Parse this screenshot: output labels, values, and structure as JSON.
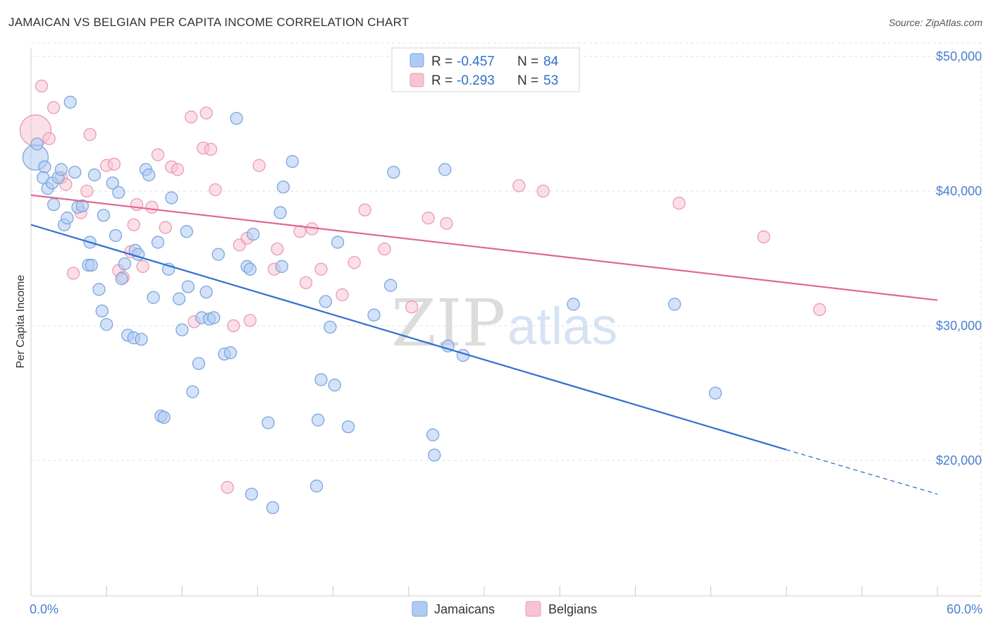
{
  "title": "JAMAICAN VS BELGIAN PER CAPITA INCOME CORRELATION CHART",
  "source": "Source: ZipAtlas.com",
  "watermark": {
    "zip": "ZIP",
    "atlas": "atlas"
  },
  "colors": {
    "blue_fill": "#aecbf2",
    "blue_stroke": "#7aa6e0",
    "blue_line": "#2f6fd0",
    "pink_fill": "#f8c4d4",
    "pink_stroke": "#ec9ab5",
    "pink_line": "#e06890",
    "axis_text": "#4a7fcf",
    "grid": "#e1e1e1"
  },
  "legend": {
    "entries": [
      {
        "r_label": "R = ",
        "r_value": "-0.457",
        "n_label": "N = ",
        "n_value": "84",
        "series": "Jamaicans"
      },
      {
        "r_label": "R = ",
        "r_value": "-0.293",
        "n_label": "N = ",
        "n_value": "53",
        "series": "Belgians"
      }
    ]
  },
  "chart_data": {
    "type": "scatter",
    "title": "JAMAICAN VS BELGIAN PER CAPITA INCOME CORRELATION CHART",
    "xlabel": "",
    "ylabel": "Per Capita Income",
    "xlim": [
      0,
      60
    ],
    "ylim": [
      10000,
      51000
    ],
    "x_tick_labels": [
      {
        "value": 0,
        "label": "0.0%"
      },
      {
        "value": 60,
        "label": "60.0%"
      }
    ],
    "y_tick_labels": [
      {
        "value": 20000,
        "label": "$20,000"
      },
      {
        "value": 30000,
        "label": "$30,000"
      },
      {
        "value": 40000,
        "label": "$40,000"
      },
      {
        "value": 50000,
        "label": "$50,000"
      }
    ],
    "grid": true,
    "legend_position": "top-center",
    "series": [
      {
        "name": "Jamaicans",
        "color": "#aecbf2",
        "points": [
          [
            0.3,
            42500
          ],
          [
            0.4,
            43500
          ],
          [
            0.9,
            41800
          ],
          [
            0.8,
            41000
          ],
          [
            1.1,
            40200
          ],
          [
            1.4,
            40600
          ],
          [
            1.5,
            39000
          ],
          [
            1.8,
            41000
          ],
          [
            2.0,
            41600
          ],
          [
            2.2,
            37500
          ],
          [
            2.4,
            38000
          ],
          [
            2.6,
            46600
          ],
          [
            2.9,
            41400
          ],
          [
            3.1,
            38800
          ],
          [
            3.4,
            38900
          ],
          [
            3.8,
            34500
          ],
          [
            3.9,
            36200
          ],
          [
            4.0,
            34500
          ],
          [
            4.2,
            41200
          ],
          [
            4.5,
            32700
          ],
          [
            4.7,
            31100
          ],
          [
            4.8,
            38200
          ],
          [
            5.0,
            30100
          ],
          [
            5.4,
            40600
          ],
          [
            5.6,
            36700
          ],
          [
            5.8,
            39900
          ],
          [
            6.0,
            33500
          ],
          [
            6.2,
            34600
          ],
          [
            6.4,
            29300
          ],
          [
            6.8,
            29100
          ],
          [
            6.9,
            35600
          ],
          [
            7.1,
            35300
          ],
          [
            7.3,
            29000
          ],
          [
            7.6,
            41600
          ],
          [
            7.8,
            41200
          ],
          [
            8.1,
            32100
          ],
          [
            8.4,
            36200
          ],
          [
            8.6,
            23300
          ],
          [
            8.8,
            23200
          ],
          [
            9.1,
            34200
          ],
          [
            9.3,
            39500
          ],
          [
            9.8,
            32000
          ],
          [
            10.0,
            29700
          ],
          [
            10.3,
            37000
          ],
          [
            10.4,
            32900
          ],
          [
            10.7,
            25100
          ],
          [
            11.1,
            27200
          ],
          [
            11.3,
            30600
          ],
          [
            11.6,
            32500
          ],
          [
            11.8,
            30500
          ],
          [
            12.1,
            30600
          ],
          [
            12.4,
            35300
          ],
          [
            12.8,
            27900
          ],
          [
            13.2,
            28000
          ],
          [
            13.6,
            45400
          ],
          [
            14.3,
            34400
          ],
          [
            14.5,
            34200
          ],
          [
            14.6,
            17500
          ],
          [
            14.7,
            36800
          ],
          [
            15.7,
            22800
          ],
          [
            16.0,
            16500
          ],
          [
            16.5,
            38400
          ],
          [
            16.6,
            34400
          ],
          [
            16.7,
            40300
          ],
          [
            17.3,
            42200
          ],
          [
            18.9,
            18100
          ],
          [
            19.0,
            23000
          ],
          [
            19.2,
            26000
          ],
          [
            19.5,
            31800
          ],
          [
            19.8,
            29900
          ],
          [
            20.1,
            25600
          ],
          [
            20.3,
            36200
          ],
          [
            21.0,
            22500
          ],
          [
            22.7,
            30800
          ],
          [
            23.8,
            33000
          ],
          [
            24.0,
            41400
          ],
          [
            26.6,
            21900
          ],
          [
            26.7,
            20400
          ],
          [
            27.4,
            41600
          ],
          [
            27.6,
            28500
          ],
          [
            28.6,
            27800
          ],
          [
            35.9,
            31600
          ],
          [
            42.6,
            31600
          ],
          [
            45.3,
            25000
          ]
        ]
      },
      {
        "name": "Belgians",
        "color": "#f8c4d4",
        "points": [
          [
            0.3,
            44500
          ],
          [
            0.7,
            47800
          ],
          [
            1.2,
            43900
          ],
          [
            1.5,
            46200
          ],
          [
            2.0,
            41000
          ],
          [
            2.3,
            40500
          ],
          [
            2.8,
            33900
          ],
          [
            3.3,
            38400
          ],
          [
            3.7,
            40000
          ],
          [
            3.9,
            44200
          ],
          [
            5.0,
            41900
          ],
          [
            5.5,
            42000
          ],
          [
            5.8,
            34100
          ],
          [
            6.1,
            33600
          ],
          [
            6.6,
            35500
          ],
          [
            6.8,
            37500
          ],
          [
            7.0,
            39000
          ],
          [
            7.4,
            34400
          ],
          [
            8.0,
            38800
          ],
          [
            8.4,
            42700
          ],
          [
            8.9,
            37300
          ],
          [
            9.3,
            41800
          ],
          [
            9.7,
            41600
          ],
          [
            10.6,
            45500
          ],
          [
            10.8,
            30300
          ],
          [
            11.4,
            43200
          ],
          [
            11.6,
            45800
          ],
          [
            11.9,
            43100
          ],
          [
            12.2,
            40100
          ],
          [
            13.0,
            18000
          ],
          [
            13.4,
            30000
          ],
          [
            13.8,
            36000
          ],
          [
            14.3,
            36500
          ],
          [
            14.5,
            30400
          ],
          [
            15.1,
            41900
          ],
          [
            16.1,
            34200
          ],
          [
            16.3,
            35700
          ],
          [
            17.8,
            37000
          ],
          [
            18.2,
            33200
          ],
          [
            18.6,
            37200
          ],
          [
            19.2,
            34200
          ],
          [
            20.6,
            32300
          ],
          [
            21.4,
            34700
          ],
          [
            22.1,
            38600
          ],
          [
            23.4,
            35700
          ],
          [
            25.2,
            31400
          ],
          [
            26.3,
            38000
          ],
          [
            27.5,
            37600
          ],
          [
            32.3,
            40400
          ],
          [
            33.9,
            40000
          ],
          [
            42.9,
            39100
          ],
          [
            48.5,
            36600
          ],
          [
            52.2,
            31200
          ]
        ]
      }
    ],
    "trendlines": [
      {
        "series": "Jamaicans",
        "solid": [
          [
            0,
            37500
          ],
          [
            50,
            20800
          ]
        ],
        "dashed": [
          [
            50,
            20800
          ],
          [
            60,
            17500
          ]
        ]
      },
      {
        "series": "Belgians",
        "solid": [
          [
            0,
            39700
          ],
          [
            60,
            31900
          ]
        ]
      }
    ]
  }
}
